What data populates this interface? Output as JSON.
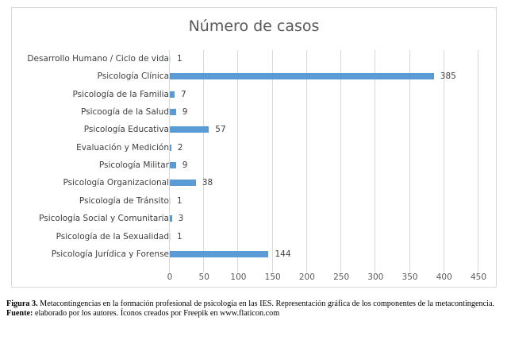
{
  "chart_data": {
    "type": "bar",
    "orientation": "horizontal",
    "title": "Número de casos",
    "xlabel": "",
    "ylabel": "",
    "categories": [
      "Desarrollo Humano / Ciclo de vida",
      "Psicología Clínica",
      "Psicología de la Familia",
      "Psicoogía de la Salud",
      "Psicología Educativa",
      "Evaluación y Medición",
      "Psicología Militar",
      "Psicología Organizacional",
      "Psicología de Tránsito",
      "Psicología Social y Comunitaria",
      "Psicología de la Sexualidad",
      "Psicología Jurídica y Forense"
    ],
    "values": [
      1,
      385,
      7,
      9,
      57,
      2,
      9,
      38,
      1,
      3,
      1,
      144
    ],
    "xlim": [
      0,
      450
    ],
    "xticks": [
      "0",
      "50",
      "100",
      "150",
      "200",
      "250",
      "300",
      "350",
      "400",
      "450"
    ],
    "grid": "vertical",
    "legend": "none",
    "data_labels": true,
    "bar_color": "#5b9bd5"
  },
  "caption": {
    "figure_label": "Figura 3.",
    "figure_text": " Metacontingencias en la formación profesional de psicología en las IES. Representación gráfica de los componentes de la metacontingencia.",
    "source_label": "Fuente:",
    "source_text": " elaborado por los autores. Íconos creados por Freepik en www.flaticon.com"
  }
}
